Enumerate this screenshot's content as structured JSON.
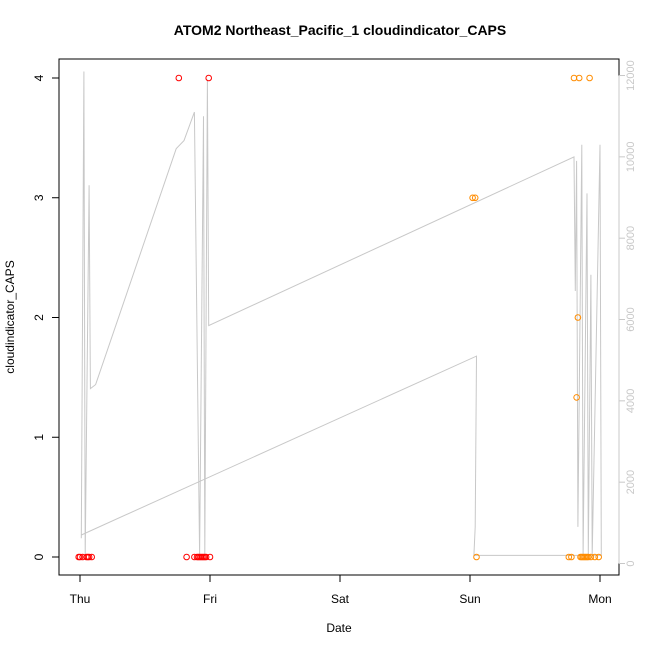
{
  "chart_data": {
    "type": "scatter",
    "title": "ATOM2 Northeast_Pacific_1 cloudindicator_CAPS",
    "xlabel": "Date",
    "ylabel": "cloudindicator_CAPS",
    "x_unit": "day",
    "x_ticks": [
      "Thu",
      "Fri",
      "Sat",
      "Sun",
      "Mon"
    ],
    "ylim": [
      0,
      4
    ],
    "y_ticks": [
      "0",
      "1",
      "2",
      "3",
      "4"
    ],
    "y2lim": [
      0,
      12000
    ],
    "y2_ticks": [
      "0",
      "2000",
      "4000",
      "6000",
      "8000",
      "10000",
      "12000"
    ],
    "y2_color": "#c8c8c8",
    "grid": false,
    "legend": "none",
    "series": [
      {
        "color": "#ff0000",
        "marker": "open-circle",
        "points": [
          [
            -0.01,
            0
          ],
          [
            0.0,
            0
          ],
          [
            0.02,
            0
          ],
          [
            0.05,
            0
          ],
          [
            0.06,
            0
          ],
          [
            0.07,
            0
          ],
          [
            0.09,
            0
          ],
          [
            0.76,
            4
          ],
          [
            0.82,
            0
          ],
          [
            0.88,
            0
          ],
          [
            0.9,
            0
          ],
          [
            0.91,
            0
          ],
          [
            0.92,
            0
          ],
          [
            0.93,
            0
          ],
          [
            0.94,
            0
          ],
          [
            0.95,
            0
          ],
          [
            0.96,
            0
          ],
          [
            0.97,
            0
          ],
          [
            0.99,
            4
          ],
          [
            1.0,
            0
          ]
        ]
      },
      {
        "color": "#ff8c00",
        "marker": "open-circle",
        "points": [
          [
            3.02,
            3
          ],
          [
            3.04,
            3
          ],
          [
            3.05,
            0
          ],
          [
            3.76,
            0
          ],
          [
            3.78,
            0
          ],
          [
            3.8,
            4
          ],
          [
            3.82,
            1.333
          ],
          [
            3.83,
            2
          ],
          [
            3.84,
            4
          ],
          [
            3.85,
            0
          ],
          [
            3.86,
            0
          ],
          [
            3.87,
            0
          ],
          [
            3.88,
            0
          ],
          [
            3.89,
            0
          ],
          [
            3.9,
            0
          ],
          [
            3.91,
            0
          ],
          [
            3.92,
            4
          ],
          [
            3.93,
            0
          ],
          [
            3.96,
            0
          ],
          [
            3.99,
            0
          ]
        ]
      }
    ],
    "secondary_line": {
      "color": "#c8c8c8",
      "axis": "right",
      "points": [
        [
          0.01,
          620
        ],
        [
          0.03,
          12100
        ],
        [
          0.04,
          200
        ],
        [
          0.07,
          9300
        ],
        [
          0.08,
          4300
        ],
        [
          0.12,
          4400
        ],
        [
          0.74,
          10200
        ],
        [
          0.8,
          10400
        ],
        [
          0.88,
          11100
        ],
        [
          0.92,
          200
        ],
        [
          0.95,
          11000
        ],
        [
          0.96,
          200
        ],
        [
          0.98,
          11900
        ],
        [
          0.99,
          5850
        ],
        [
          3.8,
          10000
        ],
        [
          3.81,
          6700
        ],
        [
          3.82,
          9900
        ],
        [
          3.83,
          900
        ],
        [
          3.86,
          10300
        ],
        [
          3.87,
          200
        ],
        [
          3.9,
          9100
        ],
        [
          3.91,
          200
        ],
        [
          3.93,
          7100
        ],
        [
          3.94,
          200
        ],
        [
          4.0,
          10300
        ],
        [
          4.01,
          200
        ],
        [
          3.45,
          200
        ],
        [
          3.03,
          200
        ],
        [
          3.04,
          900
        ],
        [
          3.05,
          5100
        ],
        [
          0.01,
          700
        ]
      ]
    }
  }
}
